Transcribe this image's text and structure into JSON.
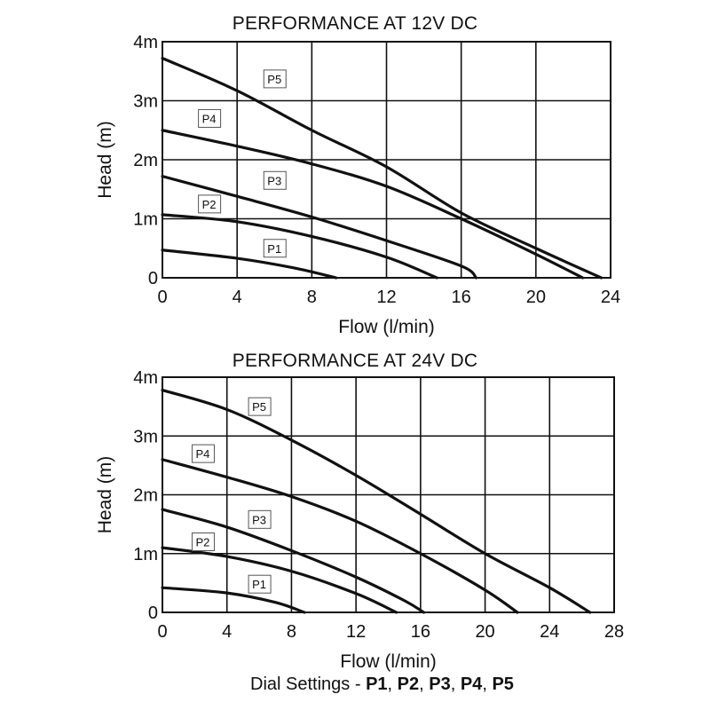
{
  "footer": {
    "text": "Dial Settings - ",
    "settings": [
      "P1",
      "P2",
      "P3",
      "P4",
      "P5"
    ]
  },
  "chart_data": [
    {
      "type": "line",
      "title": "PERFORMANCE AT 12V DC",
      "xlabel": "Flow (l/min)",
      "ylabel": "Head (m)",
      "xlim": [
        0,
        24
      ],
      "ylim": [
        0,
        4
      ],
      "xticks": [
        "0",
        "4",
        "8",
        "12",
        "16",
        "20",
        "24"
      ],
      "yticks": [
        "0",
        "1m",
        "2m",
        "3m",
        "4m"
      ],
      "grid": true,
      "legend": "inline boxed labels",
      "series": [
        {
          "name": "P1",
          "x": [
            0,
            4,
            7,
            9.3
          ],
          "y": [
            0.47,
            0.33,
            0.17,
            0
          ]
        },
        {
          "name": "P2",
          "x": [
            0,
            4,
            8,
            12,
            14.7
          ],
          "y": [
            1.07,
            0.95,
            0.7,
            0.35,
            0
          ]
        },
        {
          "name": "P3",
          "x": [
            0,
            4,
            8,
            12,
            16,
            16.8
          ],
          "y": [
            1.72,
            1.38,
            1.03,
            0.63,
            0.2,
            0
          ]
        },
        {
          "name": "P4",
          "x": [
            0,
            4,
            8,
            12,
            16,
            20,
            22.5
          ],
          "y": [
            2.5,
            2.23,
            1.93,
            1.55,
            1.0,
            0.4,
            0
          ]
        },
        {
          "name": "P5",
          "x": [
            0,
            4,
            8,
            12,
            16,
            20,
            23.5
          ],
          "y": [
            3.72,
            3.17,
            2.5,
            1.88,
            1.1,
            0.5,
            0
          ]
        }
      ]
    },
    {
      "type": "line",
      "title": "PERFORMANCE AT 24V DC",
      "xlabel": "Flow (l/min)",
      "ylabel": "Head (m)",
      "xlim": [
        0,
        28
      ],
      "ylim": [
        0,
        4
      ],
      "xticks": [
        "0",
        "4",
        "8",
        "12",
        "16",
        "20",
        "24",
        "28"
      ],
      "yticks": [
        "0",
        "1m",
        "2m",
        "3m",
        "4m"
      ],
      "grid": true,
      "legend": "inline boxed labels",
      "series": [
        {
          "name": "P1",
          "x": [
            0,
            4,
            7,
            8.8
          ],
          "y": [
            0.42,
            0.33,
            0.17,
            0
          ]
        },
        {
          "name": "P2",
          "x": [
            0,
            4,
            8,
            12,
            14.5
          ],
          "y": [
            1.1,
            0.95,
            0.7,
            0.32,
            0
          ]
        },
        {
          "name": "P3",
          "x": [
            0,
            4,
            8,
            12,
            15,
            16.2
          ],
          "y": [
            1.75,
            1.45,
            1.05,
            0.6,
            0.2,
            0
          ]
        },
        {
          "name": "P4",
          "x": [
            0,
            4,
            8,
            12,
            16,
            20,
            22
          ],
          "y": [
            2.6,
            2.3,
            1.97,
            1.55,
            1.0,
            0.38,
            0
          ]
        },
        {
          "name": "P5",
          "x": [
            0,
            4,
            8,
            12,
            16,
            20,
            24,
            26.5
          ],
          "y": [
            3.78,
            3.45,
            2.93,
            2.33,
            1.67,
            1.0,
            0.42,
            0
          ]
        }
      ]
    }
  ]
}
